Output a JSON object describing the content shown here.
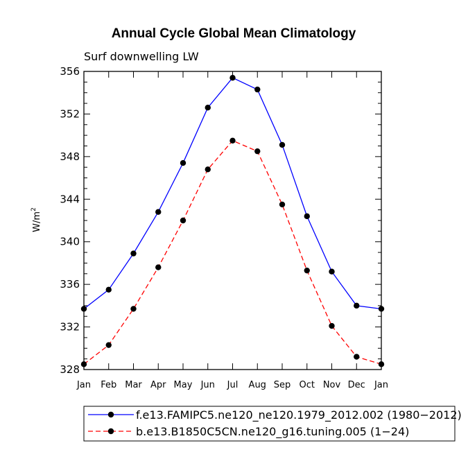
{
  "chart_data": {
    "type": "line",
    "title": "Annual Cycle Global Mean Climatology",
    "subtitle": "Surf downwelling LW",
    "ylabel_main": "W/m",
    "ylabel_sup": "2",
    "xlabel": "",
    "categories": [
      "Jan",
      "Feb",
      "Mar",
      "Apr",
      "May",
      "Jun",
      "Jul",
      "Aug",
      "Sep",
      "Oct",
      "Nov",
      "Dec",
      "Jan"
    ],
    "ylim": [
      328,
      356
    ],
    "yticks": [
      328,
      332,
      336,
      340,
      344,
      348,
      352,
      356
    ],
    "ytick_labels": [
      "328",
      "332",
      "336",
      "340",
      "344",
      "348",
      "352",
      "356"
    ],
    "legend_position": "bottom",
    "series": [
      {
        "name": "f.e13.FAMIPC5.ne120_ne120.1979_2012.002 (1980−2012)",
        "color": "#0000ff",
        "style": "solid",
        "values": [
          333.7,
          335.5,
          338.9,
          342.8,
          347.4,
          352.6,
          355.4,
          354.3,
          349.1,
          342.4,
          337.2,
          334.0,
          333.7
        ]
      },
      {
        "name": "b.e13.B1850C5CN.ne120_g16.tuning.005 (1−24)",
        "color": "#ff0000",
        "style": "dashed",
        "values": [
          328.5,
          330.3,
          333.7,
          337.6,
          342.0,
          346.8,
          349.5,
          348.5,
          343.5,
          337.3,
          332.1,
          329.2,
          328.5
        ]
      }
    ]
  }
}
